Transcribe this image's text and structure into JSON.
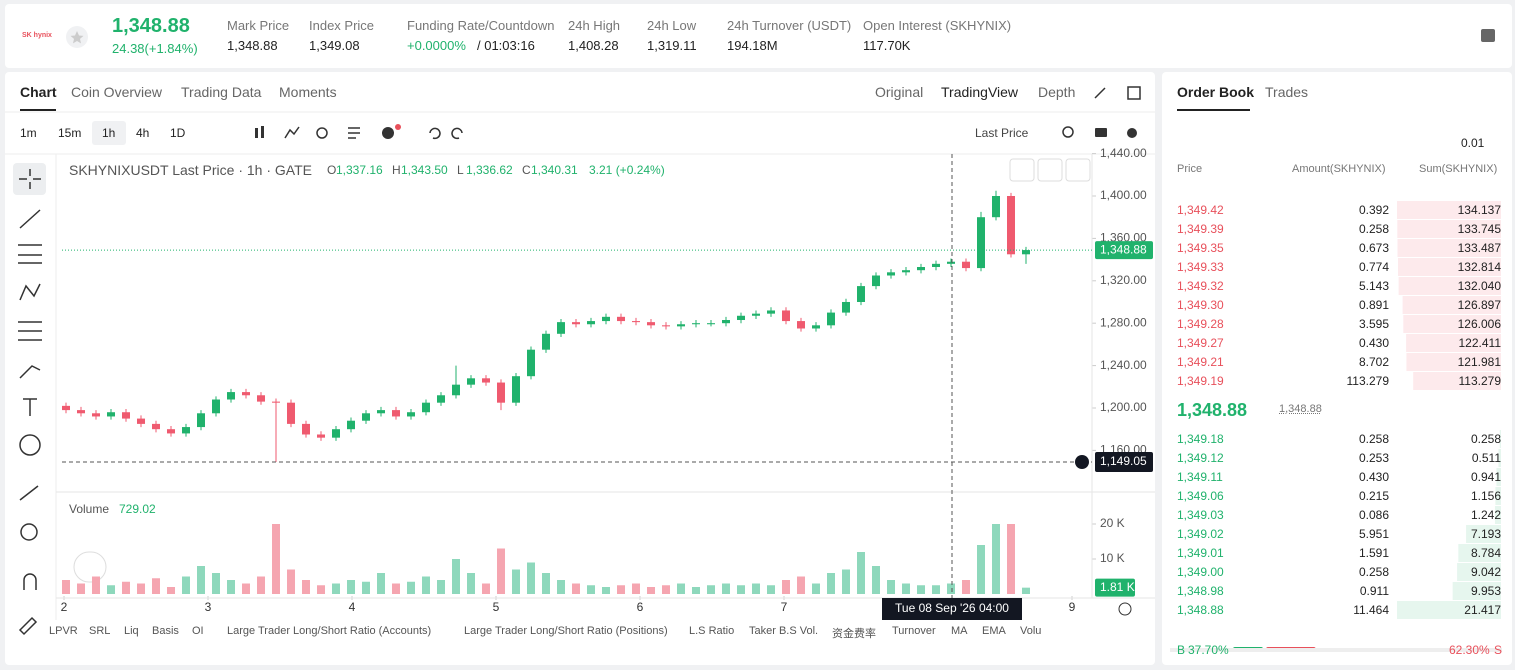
{
  "header": {
    "logo": "SK hynix",
    "price": "1,348.88",
    "change": "24.38(+1.84%)",
    "fields": [
      {
        "label": "Mark Price",
        "value": "1,348.88"
      },
      {
        "label": "Index Price",
        "value": "1,349.08"
      },
      {
        "label": "Funding Rate/Countdown",
        "value": "+0.0000%",
        "extra": "/ 01:03:16"
      },
      {
        "label": "24h High",
        "value": "1,408.28"
      },
      {
        "label": "24h Low",
        "value": "1,319.11"
      },
      {
        "label": "24h Turnover (USDT)",
        "value": "194.18M"
      },
      {
        "label": "Open Interest (SKHYNIX)",
        "value": "117.70K"
      }
    ]
  },
  "tabs": [
    "Chart",
    "Coin Overview",
    "Trading Data",
    "Moments"
  ],
  "views": [
    "Original",
    "TradingView",
    "Depth"
  ],
  "intervals": [
    "1m",
    "15m",
    "1h",
    "4h",
    "1D"
  ],
  "price_type": "Last Price",
  "chart": {
    "legend": "SKHYNIXUSDT Last Price · 1h · GATE",
    "ohlc": [
      {
        "k": "O",
        "v": "1,337.16"
      },
      {
        "k": "H",
        "v": "1,343.50"
      },
      {
        "k": "L",
        "v": "1,336.62"
      },
      {
        "k": "C",
        "v": "1,340.31"
      }
    ],
    "ohlc_change": "3.21 (+0.24%)",
    "ylim": [
      1123,
      1440
    ],
    "yticks": [
      {
        "value": 1440,
        "label": "1,440.00"
      },
      {
        "value": 1400,
        "label": "1,400.00"
      },
      {
        "value": 1360,
        "label": "1,360.00"
      },
      {
        "value": 1320,
        "label": "1,320.00"
      },
      {
        "value": 1280,
        "label": "1,280.00"
      },
      {
        "value": 1240,
        "label": "1,240.00"
      },
      {
        "value": 1200,
        "label": "1,200.00"
      },
      {
        "value": 1160,
        "label": "1,160.00"
      }
    ],
    "xlim": [
      1.986,
      9.0
    ],
    "xticks": [
      2,
      3,
      4,
      5,
      6,
      7,
      9
    ],
    "last": {
      "value": 1348.88,
      "label": "1,348.88"
    },
    "crosshair": {
      "value": 1149.05,
      "label": "1,149.05",
      "time": "Tue 08 Sep '26   04:00"
    },
    "candles": [
      [
        1202,
        1205,
        1195,
        1198
      ],
      [
        1198,
        1201,
        1192,
        1195
      ],
      [
        1195,
        1198,
        1189,
        1192
      ],
      [
        1192,
        1199,
        1189,
        1196
      ],
      [
        1196,
        1199,
        1187,
        1190
      ],
      [
        1190,
        1193,
        1182,
        1185
      ],
      [
        1185,
        1188,
        1177,
        1180
      ],
      [
        1180,
        1183,
        1173,
        1176
      ],
      [
        1176,
        1185,
        1173,
        1182
      ],
      [
        1182,
        1198,
        1179,
        1195
      ],
      [
        1195,
        1211,
        1192,
        1208
      ],
      [
        1208,
        1218,
        1205,
        1215
      ],
      [
        1215,
        1218,
        1209,
        1212
      ],
      [
        1212,
        1215,
        1203,
        1206
      ],
      [
        1206,
        1209,
        1149,
        1205
      ],
      [
        1205,
        1208,
        1182,
        1185
      ],
      [
        1185,
        1188,
        1172,
        1175
      ],
      [
        1175,
        1178,
        1169,
        1172
      ],
      [
        1172,
        1183,
        1169,
        1180
      ],
      [
        1180,
        1191,
        1177,
        1188
      ],
      [
        1188,
        1198,
        1185,
        1195
      ],
      [
        1195,
        1201,
        1192,
        1198
      ],
      [
        1198,
        1201,
        1189,
        1192
      ],
      [
        1192,
        1199,
        1189,
        1196
      ],
      [
        1196,
        1208,
        1193,
        1205
      ],
      [
        1205,
        1215,
        1202,
        1212
      ],
      [
        1212,
        1240,
        1209,
        1222
      ],
      [
        1222,
        1231,
        1219,
        1228
      ],
      [
        1228,
        1231,
        1221,
        1224
      ],
      [
        1224,
        1227,
        1198,
        1205
      ],
      [
        1205,
        1233,
        1202,
        1230
      ],
      [
        1230,
        1258,
        1227,
        1255
      ],
      [
        1255,
        1273,
        1252,
        1270
      ],
      [
        1270,
        1284,
        1267,
        1281
      ],
      [
        1281,
        1284,
        1276,
        1279
      ],
      [
        1279,
        1285,
        1276,
        1282
      ],
      [
        1282,
        1289,
        1279,
        1286
      ],
      [
        1286,
        1289,
        1279,
        1282
      ],
      [
        1282,
        1285,
        1278,
        1281
      ],
      [
        1281,
        1284,
        1275,
        1278
      ],
      [
        1278,
        1281,
        1274,
        1277
      ],
      [
        1277,
        1282,
        1274,
        1279
      ],
      [
        1279,
        1283,
        1276,
        1280
      ],
      [
        1279,
        1283,
        1277,
        1280
      ],
      [
        1280,
        1286,
        1277,
        1283
      ],
      [
        1283,
        1290,
        1280,
        1287
      ],
      [
        1287,
        1292,
        1284,
        1289
      ],
      [
        1289,
        1295,
        1286,
        1292
      ],
      [
        1292,
        1295,
        1279,
        1282
      ],
      [
        1282,
        1285,
        1272,
        1275
      ],
      [
        1275,
        1281,
        1272,
        1278
      ],
      [
        1278,
        1293,
        1275,
        1290
      ],
      [
        1290,
        1303,
        1287,
        1300
      ],
      [
        1300,
        1318,
        1297,
        1315
      ],
      [
        1315,
        1328,
        1312,
        1325
      ],
      [
        1325,
        1331,
        1322,
        1328
      ],
      [
        1328,
        1333,
        1325,
        1330
      ],
      [
        1330,
        1336,
        1327,
        1333
      ],
      [
        1333,
        1339,
        1330,
        1336
      ],
      [
        1336,
        1341,
        1333,
        1338
      ],
      [
        1338,
        1341,
        1329,
        1332
      ],
      [
        1332,
        1385,
        1329,
        1380
      ],
      [
        1380,
        1405,
        1377,
        1400
      ],
      [
        1400,
        1403,
        1342,
        1345
      ],
      [
        1345,
        1352,
        1336,
        1349
      ]
    ],
    "volume_title": "Volume",
    "volume_value": "729.02",
    "vlim": [
      0,
      28000
    ],
    "vticks": [
      {
        "value": 20000,
        "label": "20 K"
      },
      {
        "value": 10000,
        "label": "10 K"
      }
    ],
    "vlast": {
      "value": 1810,
      "label": "1.81 K"
    },
    "volumes": [
      4000,
      3000,
      5000,
      2500,
      3500,
      3000,
      4500,
      2000,
      5000,
      8000,
      6000,
      4000,
      3000,
      5000,
      20000,
      7000,
      4000,
      2500,
      3000,
      4000,
      3500,
      6000,
      3000,
      3500,
      5000,
      4000,
      10000,
      6000,
      3000,
      13000,
      7000,
      9000,
      6000,
      4000,
      3000,
      2500,
      2000,
      2500,
      3000,
      2000,
      2500,
      3000,
      2000,
      2500,
      3000,
      2500,
      3000,
      2500,
      4000,
      5000,
      3000,
      6000,
      7000,
      12000,
      8000,
      4000,
      3000,
      2500,
      2500,
      3000,
      4000,
      14000,
      20000,
      20000,
      1810
    ]
  },
  "indicators": [
    "LPVR",
    "SRL",
    "Liq",
    "Basis",
    "OI",
    "Large Trader Long/Short Ratio (Accounts)",
    "Large Trader Long/Short Ratio (Positions)",
    "L.S Ratio",
    "Taker B.S Vol.",
    "资金费率",
    "Turnover",
    "MA",
    "EMA",
    "Volu"
  ],
  "order_book": {
    "tabs": [
      "Order Book",
      "Trades"
    ],
    "precision": "0.01",
    "columns": [
      "Price",
      "Amount(SKHYNIX)",
      "Sum(SKHYNIX)"
    ],
    "asks": [
      [
        "1,349.42",
        "0.392",
        134.137
      ],
      [
        "1,349.39",
        "0.258",
        133.745
      ],
      [
        "1,349.35",
        "0.673",
        133.487
      ],
      [
        "1,349.33",
        "0.774",
        132.814
      ],
      [
        "1,349.32",
        "5.143",
        132.04
      ],
      [
        "1,349.30",
        "0.891",
        126.897
      ],
      [
        "1,349.28",
        "3.595",
        126.006
      ],
      [
        "1,349.27",
        "0.430",
        122.411
      ],
      [
        "1,349.21",
        "8.702",
        121.981
      ],
      [
        "1,349.19",
        "113.279",
        113.279
      ]
    ],
    "asks_sum_labels": [
      "134.137",
      "133.745",
      "133.487",
      "132.814",
      "132.040",
      "126.897",
      "126.006",
      "122.411",
      "121.981",
      "113.279"
    ],
    "mid": "1,348.88",
    "mark": "1,348.88",
    "bids": [
      [
        "1,349.18",
        "0.258",
        0.258
      ],
      [
        "1,349.12",
        "0.253",
        0.511
      ],
      [
        "1,349.11",
        "0.430",
        0.941
      ],
      [
        "1,349.06",
        "0.215",
        1.156
      ],
      [
        "1,349.03",
        "0.086",
        1.242
      ],
      [
        "1,349.02",
        "5.951",
        7.193
      ],
      [
        "1,349.01",
        "1.591",
        8.784
      ],
      [
        "1,349.00",
        "0.258",
        9.042
      ],
      [
        "1,348.98",
        "0.911",
        9.953
      ],
      [
        "1,348.88",
        "11.464",
        21.417
      ]
    ],
    "bids_sum_labels": [
      "0.258",
      "0.511",
      "0.941",
      "1.156",
      "1.242",
      "7.193",
      "8.784",
      "9.042",
      "9.953",
      "21.417"
    ],
    "buy_tag": "B",
    "buy_ratio": 37.7,
    "buy_ratio_label": "37.70%",
    "sell_ratio": 62.3,
    "sell_ratio_label": "62.30%",
    "sell_tag": "S"
  }
}
